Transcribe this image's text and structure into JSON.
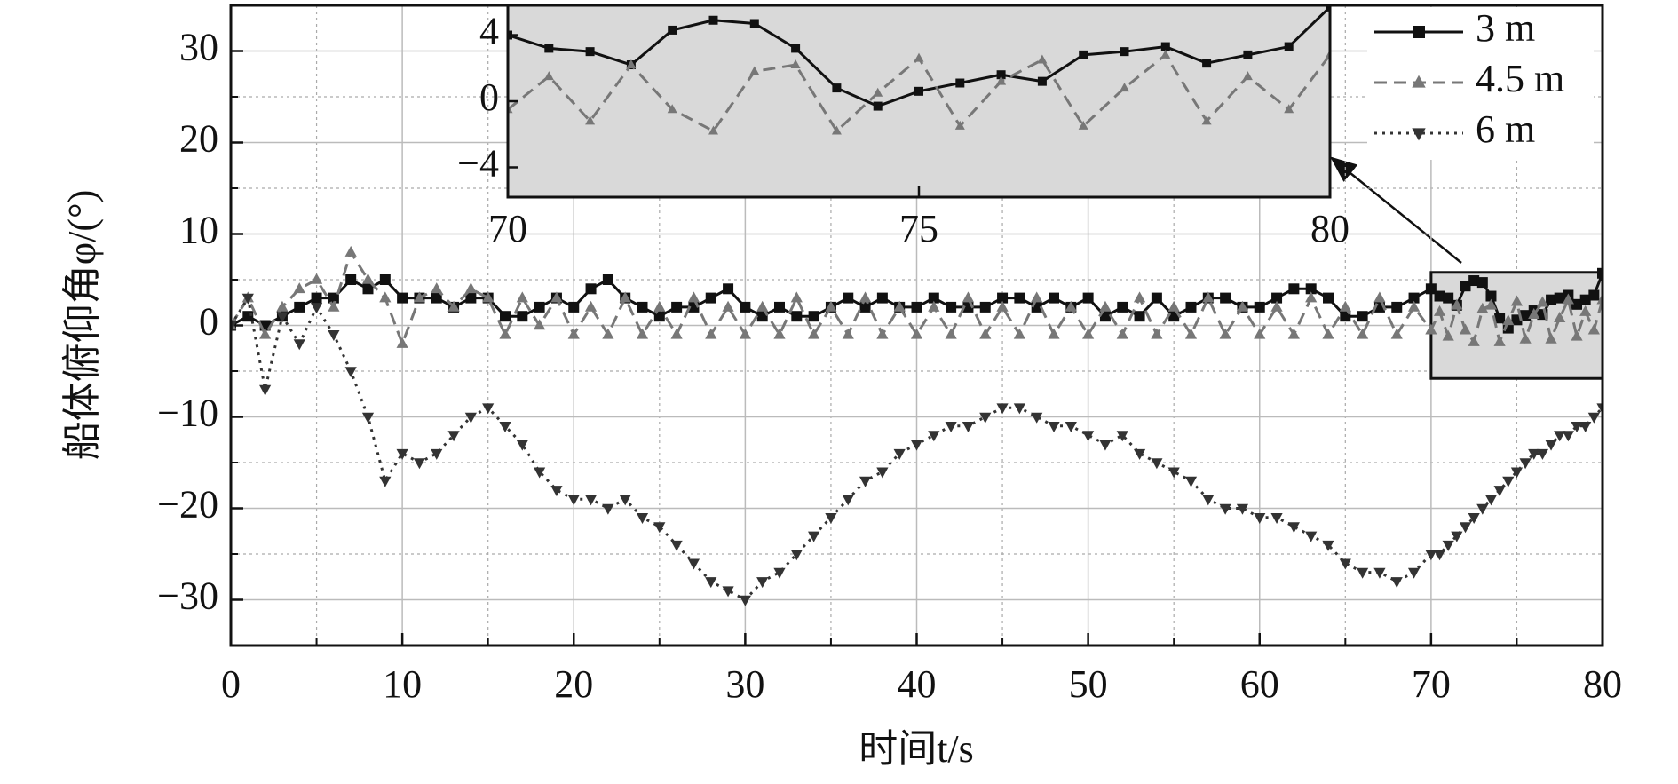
{
  "chart_data": {
    "type": "line",
    "xlabel": "时间t/s",
    "ylabel": "船体俯仰角φ/(°)",
    "xlim": [
      0,
      80
    ],
    "ylim": [
      -35,
      35
    ],
    "xticks": [
      0,
      10,
      20,
      30,
      40,
      50,
      60,
      70,
      80
    ],
    "yticks": [
      {
        "value": -30,
        "label": "−30"
      },
      {
        "value": -20,
        "label": "−20"
      },
      {
        "value": -10,
        "label": "−10"
      },
      0,
      10,
      20,
      30
    ],
    "xminorticks": [
      5,
      15,
      25,
      35,
      45,
      55,
      65,
      75
    ],
    "yminorticks": [
      -25,
      -15,
      -5,
      5,
      15,
      25
    ],
    "grid": true,
    "legend": "upper right",
    "x": [
      0,
      1,
      2,
      3,
      4,
      5,
      6,
      7,
      8,
      9,
      10,
      11,
      12,
      13,
      14,
      15,
      16,
      17,
      18,
      19,
      20,
      21,
      22,
      23,
      24,
      25,
      26,
      27,
      28,
      29,
      30,
      31,
      32,
      33,
      34,
      35,
      36,
      37,
      38,
      39,
      40,
      41,
      42,
      43,
      44,
      45,
      46,
      47,
      48,
      49,
      50,
      51,
      52,
      53,
      54,
      55,
      56,
      57,
      58,
      59,
      60,
      61,
      62,
      63,
      64,
      65,
      66,
      67,
      68,
      69,
      70,
      70.5,
      71,
      71.5,
      72,
      72.5,
      73,
      73.5,
      74,
      74.5,
      75,
      75.5,
      76,
      76.5,
      77,
      77.5,
      78,
      78.5,
      79,
      79.5,
      80
    ],
    "series": [
      {
        "name": "3 m",
        "color": "#111111",
        "dash": "solid",
        "marker": "square",
        "values": [
          0,
          1,
          0,
          1,
          2,
          3,
          3,
          5,
          4,
          5,
          3,
          3,
          3,
          2,
          3,
          3,
          1,
          1,
          2,
          3,
          2,
          4,
          5,
          3,
          2,
          1,
          2,
          2,
          3,
          4,
          2,
          1,
          2,
          1,
          1,
          2,
          3,
          2,
          3,
          2,
          2,
          3,
          2,
          2,
          2,
          3,
          3,
          2,
          3,
          2,
          3,
          1,
          2,
          1,
          3,
          1,
          2,
          3,
          3,
          2,
          2,
          3,
          4,
          4,
          3,
          1,
          1,
          2,
          2,
          3,
          4,
          3.2,
          3,
          2.2,
          4.3,
          4.9,
          4.7,
          3.2,
          0.8,
          -0.3,
          0.6,
          1.1,
          1.6,
          1.2,
          2.8,
          3,
          3.3,
          2.3,
          2.8,
          3.3,
          5.7
        ]
      },
      {
        "name": "4.5 m",
        "color": "#777777",
        "dash": "dashed",
        "marker": "triangle-up",
        "values": [
          0,
          3,
          -1,
          2,
          4,
          5,
          2,
          8,
          5,
          3,
          -2,
          3,
          4,
          2,
          4,
          3,
          -1,
          3,
          0,
          3,
          -1,
          2,
          -1,
          3,
          -1,
          2,
          -1,
          3,
          -1,
          2,
          -1,
          2,
          -1,
          3,
          -1,
          2,
          -1,
          3,
          -1,
          2,
          -1,
          2,
          -1,
          3,
          -1,
          2,
          -1,
          3,
          -1,
          2,
          -1,
          2,
          -1,
          3,
          -1,
          2,
          -1,
          3,
          -1,
          2,
          -1,
          2,
          -1,
          3,
          -1,
          2,
          -1,
          3,
          -1,
          2,
          -0.5,
          1.5,
          -1.2,
          2.2,
          -0.5,
          -1.8,
          1.8,
          2.2,
          -1.8,
          0.5,
          2.6,
          -1.5,
          1.2,
          2.5,
          -1.5,
          0.8,
          2.8,
          -1.2,
          1.5,
          -0.5,
          2.8
        ]
      },
      {
        "name": "6 m",
        "color": "#333333",
        "dash": "dotted",
        "marker": "triangle-down",
        "values": [
          0,
          3,
          -7,
          1,
          -2,
          2,
          -1,
          -5,
          -10,
          -17,
          -14,
          -15,
          -14,
          -12,
          -10,
          -9,
          -11,
          -13,
          -16,
          -18,
          -19,
          -19,
          -20,
          -19,
          -21,
          -22,
          -24,
          -26,
          -28,
          -29,
          -30,
          -28,
          -27,
          -25,
          -23,
          -21,
          -19,
          -17,
          -16,
          -14,
          -13,
          -12,
          -11,
          -11,
          -10,
          -9,
          -9,
          -10,
          -11,
          -11,
          -12,
          -13,
          -12,
          -14,
          -15,
          -16,
          -17,
          -19,
          -20,
          -20,
          -21,
          -21,
          -22,
          -23,
          -24,
          -26,
          -27,
          -27,
          -28,
          -27,
          -25,
          -25,
          -24,
          -23,
          -22,
          -21,
          -20,
          -19,
          -18,
          -17,
          -16,
          -15,
          -14,
          -14,
          -13,
          -12,
          -12,
          -11,
          -11,
          -10,
          -9
        ]
      }
    ],
    "inset": {
      "xlim": [
        70,
        80
      ],
      "ylim": [
        -5.8,
        5.8
      ],
      "xticks": [
        70,
        75,
        80
      ],
      "yticks": [
        {
          "value": -4,
          "label": "−4"
        },
        0,
        4
      ]
    }
  }
}
